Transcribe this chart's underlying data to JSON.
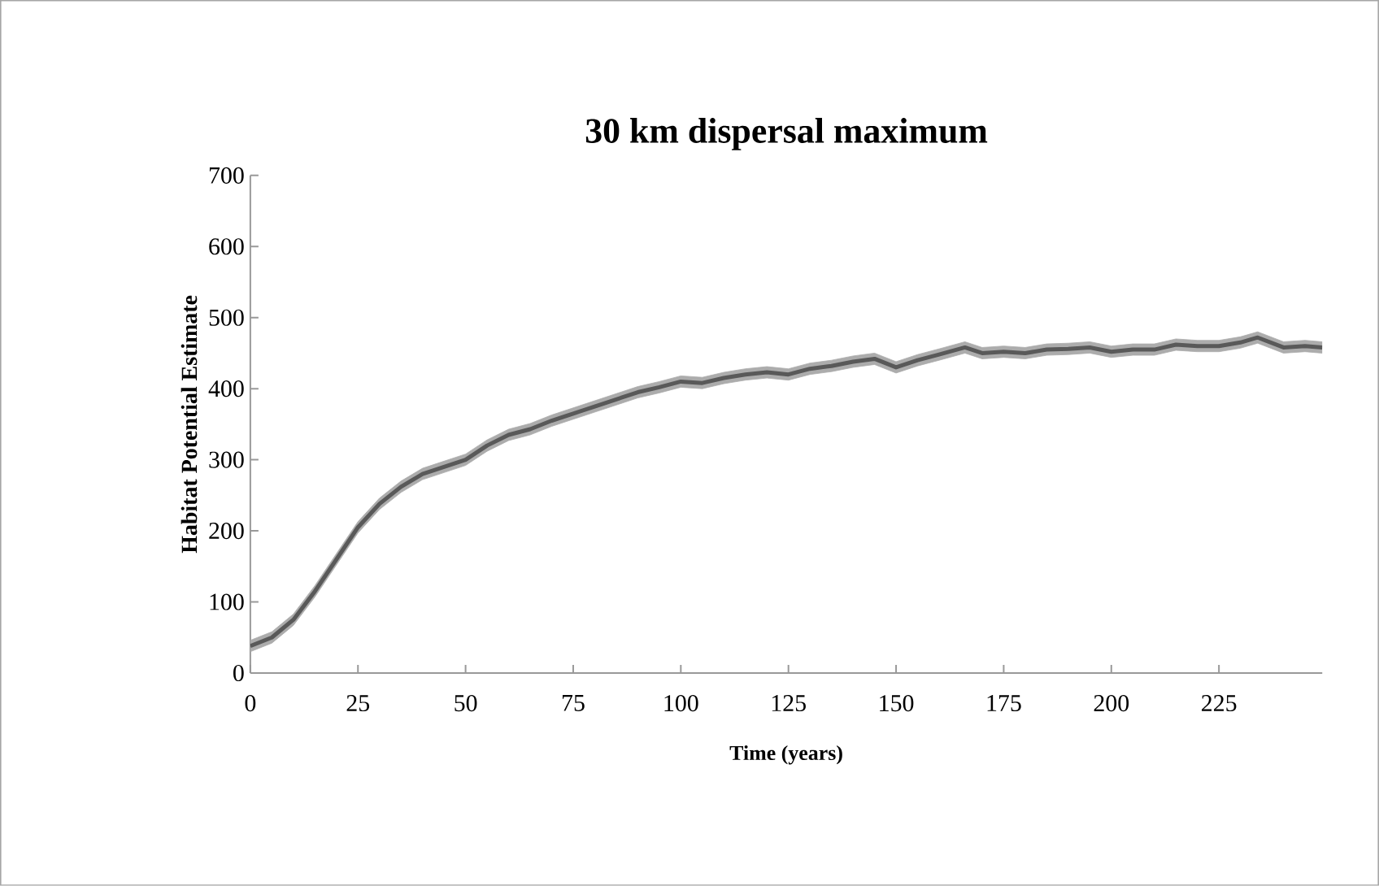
{
  "chart_data": {
    "type": "line",
    "title": "30 km dispersal maximum",
    "xlabel": "Time (years)",
    "ylabel": "Habitat Potential Estimate",
    "x": [
      0,
      5,
      10,
      15,
      20,
      25,
      30,
      35,
      40,
      45,
      50,
      55,
      60,
      65,
      70,
      75,
      80,
      85,
      90,
      95,
      100,
      105,
      110,
      115,
      120,
      125,
      130,
      135,
      140,
      145,
      150,
      155,
      160,
      166,
      170,
      175,
      180,
      185,
      190,
      195,
      200,
      205,
      210,
      215,
      220,
      225,
      230,
      234,
      240,
      245,
      249
    ],
    "series": [
      {
        "color": "#595959",
        "values": [
          38,
          50,
          75,
          115,
          160,
          205,
          238,
          262,
          280,
          290,
          300,
          320,
          335,
          343,
          355,
          365,
          375,
          385,
          395,
          402,
          410,
          408,
          415,
          420,
          423,
          420,
          428,
          432,
          438,
          442,
          430,
          440,
          448,
          458,
          450,
          452,
          450,
          455,
          456,
          458,
          452,
          455,
          455,
          462,
          460,
          460,
          465,
          472,
          458,
          460,
          458
        ],
        "lower": [
          30,
          42,
          67,
          107,
          152,
          197,
          230,
          254,
          272,
          282,
          292,
          312,
          327,
          335,
          347,
          357,
          367,
          377,
          387,
          394,
          402,
          400,
          407,
          412,
          415,
          412,
          420,
          424,
          430,
          434,
          422,
          432,
          440,
          450,
          442,
          444,
          442,
          447,
          448,
          450,
          444,
          447,
          447,
          454,
          452,
          452,
          457,
          464,
          450,
          452,
          450
        ],
        "upper": [
          46,
          58,
          83,
          123,
          168,
          213,
          246,
          270,
          288,
          298,
          308,
          328,
          343,
          351,
          363,
          373,
          383,
          393,
          403,
          410,
          418,
          416,
          423,
          428,
          431,
          428,
          436,
          440,
          446,
          450,
          438,
          448,
          456,
          466,
          458,
          460,
          458,
          463,
          464,
          466,
          460,
          463,
          463,
          470,
          468,
          468,
          473,
          480,
          466,
          468,
          466
        ]
      }
    ],
    "xlim": [
      0,
      249
    ],
    "ylim": [
      0,
      700
    ],
    "xticks": [
      0,
      25,
      50,
      75,
      100,
      125,
      150,
      175,
      200,
      225
    ],
    "yticks": [
      0,
      100,
      200,
      300,
      400,
      500,
      600,
      700
    ],
    "grid": false,
    "marker": "none",
    "line_style": "solid"
  }
}
